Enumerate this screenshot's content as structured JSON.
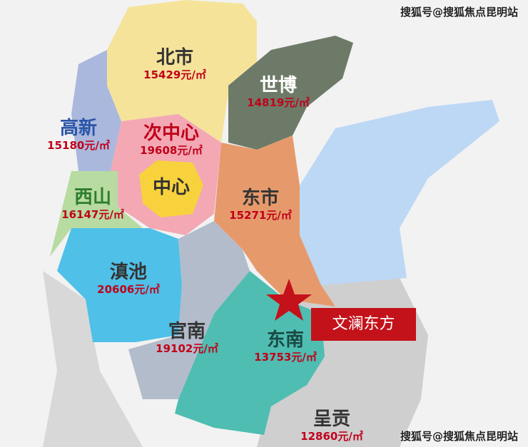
{
  "watermark": "搜狐号@搜狐焦点昆明站",
  "project": {
    "label": "文澜东方",
    "marker": "star-icon",
    "color": "#c4121a"
  },
  "districts": [
    {
      "name": "北市",
      "price": "15429元/㎡",
      "color": "#f5e39a"
    },
    {
      "name": "世博",
      "price": "14819元/㎡",
      "color": "#6e7a68"
    },
    {
      "name": "高新",
      "price": "15180元/㎡",
      "color": "#aab8dd"
    },
    {
      "name": "次中心",
      "price": "19608元/㎡",
      "color": "#f3a8b4"
    },
    {
      "name": "中心",
      "price": "",
      "color": "#f8d23c"
    },
    {
      "name": "西山",
      "price": "16147元/㎡",
      "color": "#b7dba0"
    },
    {
      "name": "东市",
      "price": "15271元/㎡",
      "color": "#e69a6c"
    },
    {
      "name": "滇池",
      "price": "20606元/㎡",
      "color": "#4fc0e8"
    },
    {
      "name": "官南",
      "price": "19102元/㎡",
      "color": "#b3bccb"
    },
    {
      "name": "东南",
      "price": "13753元/㎡",
      "color": "#4fbdb2"
    },
    {
      "name": "呈贡",
      "price": "12860元/㎡",
      "color": "#cfcfcf"
    }
  ],
  "lake_color": "#bcd8f5"
}
